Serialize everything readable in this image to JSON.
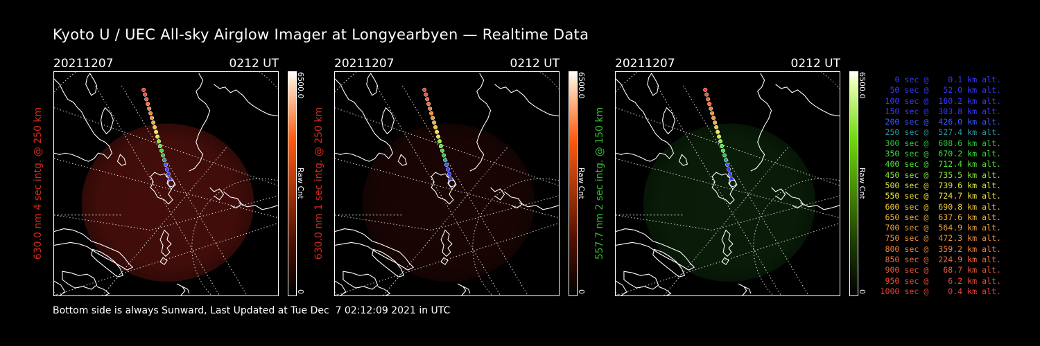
{
  "title": "Kyoto U / UEC All-sky Airglow Imager at Longyearbyen — Realtime Data",
  "panels": [
    {
      "date": "20211207",
      "time": "0212 UT",
      "side_label": "630.0 nm 4 sec intg. @ 250 km",
      "label_color": "#d22a1a",
      "glow_color": "#5a120e",
      "glow_opacity": 0.75,
      "colorbar_top": "6500.0",
      "colorbar_bottom": "0",
      "colorbar_unit": "Raw Cnt",
      "colorbar_color": "#ff5a10"
    },
    {
      "date": "20211207",
      "time": "0212 UT",
      "side_label": "630.0 nm 1 sec intg. @ 250 km",
      "label_color": "#d22a1a",
      "glow_color": "#2a0806",
      "glow_opacity": 0.6,
      "colorbar_top": "6500.0",
      "colorbar_bottom": "0",
      "colorbar_unit": "Raw Cnt",
      "colorbar_color": "#ff5a10"
    },
    {
      "date": "20211207",
      "time": "0212 UT",
      "side_label": "557.7 nm 2 sec intg. @ 150 km",
      "label_color": "#2fbf2a",
      "glow_color": "#0d2a0c",
      "glow_opacity": 0.7,
      "colorbar_top": "6500.0",
      "colorbar_bottom": "0",
      "colorbar_unit": "Raw Cnt",
      "colorbar_color": "#6fd80f"
    }
  ],
  "legend": [
    {
      "text": "0 sec @    0.1 km alt.",
      "color": "#3a3aff"
    },
    {
      "text": "50 sec @   52.0 km alt.",
      "color": "#3a3aff"
    },
    {
      "text": "100 sec @  160.2 km alt.",
      "color": "#3a3aff"
    },
    {
      "text": "150 sec @  303.8 km alt.",
      "color": "#3a3aff"
    },
    {
      "text": "200 sec @  426.0 km alt.",
      "color": "#3a5aff"
    },
    {
      "text": "250 sec @  527.4 km alt.",
      "color": "#2a9aa0"
    },
    {
      "text": "300 sec @  608.6 km alt.",
      "color": "#2ec83a"
    },
    {
      "text": "350 sec @  670.2 km alt.",
      "color": "#3ae03a"
    },
    {
      "text": "400 sec @  712.4 km alt.",
      "color": "#50e83a"
    },
    {
      "text": "450 sec @  735.5 km alt.",
      "color": "#8ae83a"
    },
    {
      "text": "500 sec @  739.6 km alt.",
      "color": "#d6e83a"
    },
    {
      "text": "550 sec @  724.7 km alt.",
      "color": "#f0e83a"
    },
    {
      "text": "600 sec @  690.8 km alt.",
      "color": "#f0c83a"
    },
    {
      "text": "650 sec @  637.6 km alt.",
      "color": "#f0b03a"
    },
    {
      "text": "700 sec @  564.9 km alt.",
      "color": "#f0a03a"
    },
    {
      "text": "750 sec @  472.3 km alt.",
      "color": "#f0903a"
    },
    {
      "text": "800 sec @  359.2 km alt.",
      "color": "#f0803a"
    },
    {
      "text": "850 sec @  224.9 km alt.",
      "color": "#f0703a"
    },
    {
      "text": "900 sec @   68.7 km alt.",
      "color": "#f05a3a"
    },
    {
      "text": "950 sec @    6.2 km alt.",
      "color": "#f0503a"
    },
    {
      "text": "1000 sec @    0.4 km alt.",
      "color": "#f0403a"
    }
  ],
  "footer": "Bottom side is always Sunward, Last Updated at Tue Dec  7 02:12:09 2021 in UTC"
}
